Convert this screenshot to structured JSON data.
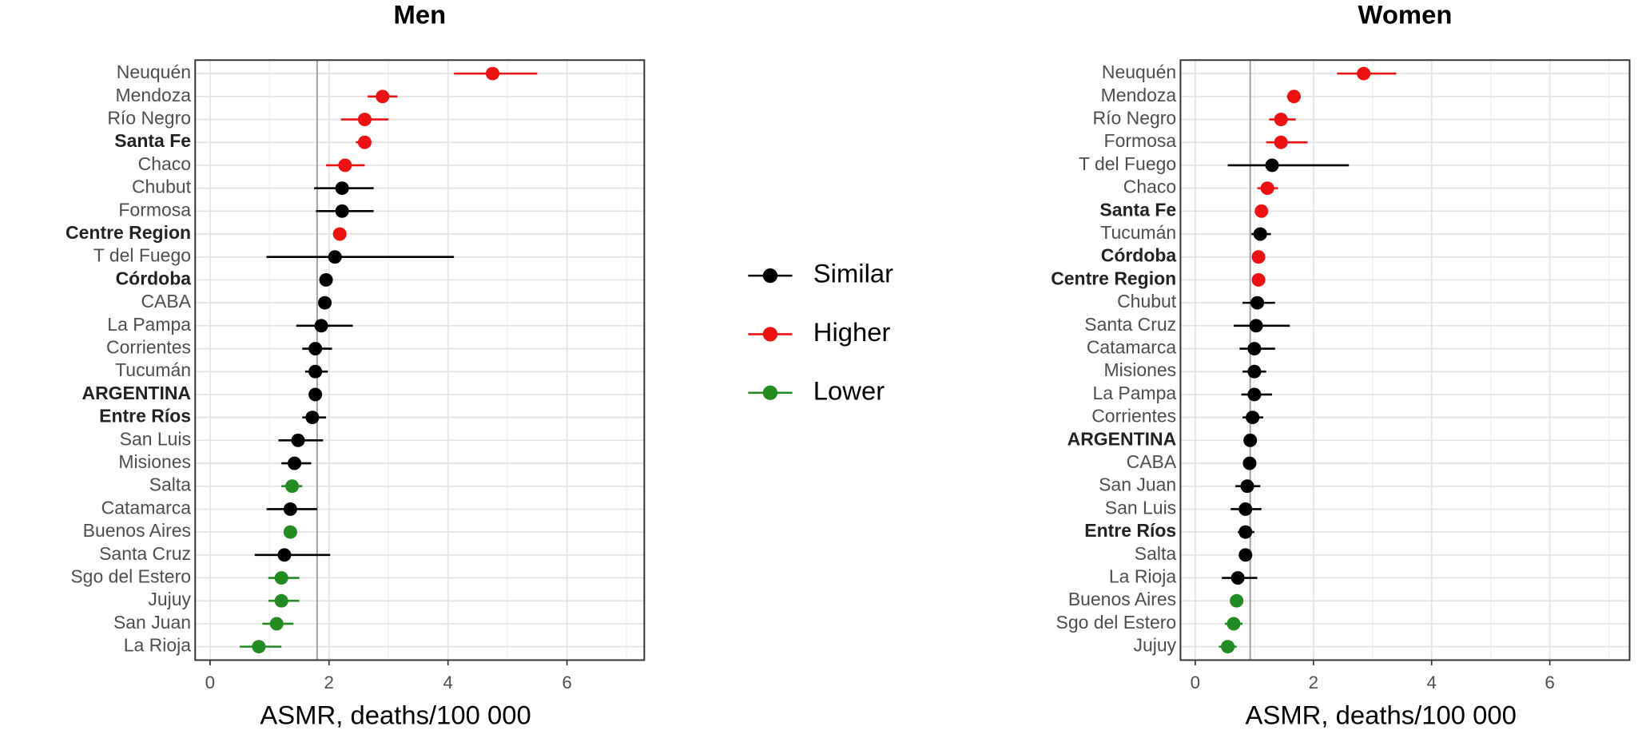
{
  "chart_data": [
    {
      "type": "forest",
      "title": "Men",
      "x_label": "ASMR, deaths/100 000",
      "categories": [
        "Neuquén",
        "Mendoza",
        "Río Negro",
        "Santa Fe",
        "Chaco",
        "Chubut",
        "Formosa",
        "Centre Region",
        "T del Fuego",
        "Córdoba",
        "CABA",
        "La Pampa",
        "Corrientes",
        "Tucumán",
        "ARGENTINA",
        "Entre Ríos",
        "San Luis",
        "Misiones",
        "Salta",
        "Catamarca",
        "Buenos Aires",
        "Santa Cruz",
        "Sgo del Estero",
        "Jujuy",
        "San Juan",
        "La Rioja"
      ],
      "bold_indices": [
        3,
        7,
        9,
        14,
        15
      ],
      "series": [
        {
          "name": "Similar",
          "color": "#000000",
          "values": [
            null,
            null,
            null,
            null,
            null,
            2.22,
            2.22,
            null,
            2.1,
            1.95,
            1.93,
            1.87,
            1.77,
            1.77,
            1.77,
            1.72,
            1.48,
            1.42,
            null,
            1.35,
            null,
            1.25,
            null,
            null,
            null,
            null
          ],
          "ci_low": [
            null,
            null,
            null,
            null,
            null,
            1.75,
            1.78,
            null,
            0.95,
            1.85,
            1.83,
            1.45,
            1.55,
            1.6,
            1.72,
            1.55,
            1.15,
            1.2,
            null,
            0.95,
            null,
            0.75,
            null,
            null,
            null,
            null
          ],
          "ci_high": [
            null,
            null,
            null,
            null,
            null,
            2.75,
            2.75,
            null,
            4.1,
            2.05,
            2.03,
            2.4,
            2.05,
            1.98,
            1.82,
            1.95,
            1.9,
            1.7,
            null,
            1.8,
            null,
            2.02,
            null,
            null,
            null,
            null
          ]
        },
        {
          "name": "Higher",
          "color": "#ee1111",
          "values": [
            4.75,
            2.9,
            2.6,
            2.6,
            2.27,
            null,
            null,
            2.18,
            null,
            null,
            null,
            null,
            null,
            null,
            null,
            null,
            null,
            null,
            null,
            null,
            null,
            null,
            null,
            null,
            null,
            null
          ],
          "ci_low": [
            4.1,
            2.65,
            2.2,
            2.45,
            1.95,
            null,
            null,
            2.1,
            null,
            null,
            null,
            null,
            null,
            null,
            null,
            null,
            null,
            null,
            null,
            null,
            null,
            null,
            null,
            null,
            null,
            null
          ],
          "ci_high": [
            5.5,
            3.15,
            3.0,
            2.7,
            2.6,
            null,
            null,
            2.28,
            null,
            null,
            null,
            null,
            null,
            null,
            null,
            null,
            null,
            null,
            null,
            null,
            null,
            null,
            null,
            null,
            null,
            null
          ]
        },
        {
          "name": "Lower",
          "color": "#228b22",
          "values": [
            null,
            null,
            null,
            null,
            null,
            null,
            null,
            null,
            null,
            null,
            null,
            null,
            null,
            null,
            null,
            null,
            null,
            null,
            1.38,
            null,
            1.35,
            null,
            1.2,
            1.2,
            1.12,
            0.82
          ],
          "ci_low": [
            null,
            null,
            null,
            null,
            null,
            null,
            null,
            null,
            null,
            null,
            null,
            null,
            null,
            null,
            null,
            null,
            null,
            null,
            1.2,
            null,
            1.3,
            null,
            0.98,
            0.98,
            0.88,
            0.5
          ],
          "ci_high": [
            null,
            null,
            null,
            null,
            null,
            null,
            null,
            null,
            null,
            null,
            null,
            null,
            null,
            null,
            null,
            null,
            null,
            null,
            1.55,
            null,
            1.4,
            null,
            1.5,
            1.5,
            1.4,
            1.2
          ]
        }
      ],
      "reference_line": 1.8,
      "xlim": [
        -0.25,
        7.3
      ],
      "xticks": [
        0,
        2,
        4,
        6
      ],
      "minor_xticks": [
        1,
        3,
        5,
        7
      ],
      "grid": true
    },
    {
      "type": "forest",
      "title": "Women",
      "x_label": "ASMR, deaths/100 000",
      "categories": [
        "Neuquén",
        "Mendoza",
        "Río Negro",
        "Formosa",
        "T del Fuego",
        "Chaco",
        "Santa Fe",
        "Tucumán",
        "Córdoba",
        "Centre Region",
        "Chubut",
        "Santa Cruz",
        "Catamarca",
        "Misiones",
        "La Pampa",
        "Corrientes",
        "ARGENTINA",
        "CABA",
        "San Juan",
        "San Luis",
        "Entre Ríos",
        "Salta",
        "La Rioja",
        "Buenos Aires",
        "Sgo del Estero",
        "Jujuy"
      ],
      "bold_indices": [
        6,
        8,
        9,
        16,
        20
      ],
      "series": [
        {
          "name": "Similar",
          "color": "#000000",
          "values": [
            null,
            null,
            null,
            null,
            1.3,
            null,
            null,
            1.1,
            null,
            null,
            1.05,
            1.03,
            1.0,
            1.0,
            1.0,
            0.97,
            0.93,
            0.92,
            0.88,
            0.85,
            0.85,
            0.85,
            0.72,
            null,
            null,
            null
          ],
          "ci_low": [
            null,
            null,
            null,
            null,
            0.55,
            null,
            null,
            0.95,
            null,
            null,
            0.8,
            0.65,
            0.75,
            0.8,
            0.78,
            0.8,
            0.9,
            0.85,
            0.68,
            0.6,
            0.72,
            0.75,
            0.45,
            null,
            null,
            null
          ],
          "ci_high": [
            null,
            null,
            null,
            null,
            2.6,
            null,
            null,
            1.28,
            null,
            null,
            1.35,
            1.6,
            1.35,
            1.2,
            1.3,
            1.15,
            0.96,
            1.0,
            1.1,
            1.12,
            1.0,
            0.95,
            1.05,
            null,
            null,
            null
          ]
        },
        {
          "name": "Higher",
          "color": "#ee1111",
          "values": [
            2.85,
            1.67,
            1.45,
            1.45,
            null,
            1.22,
            1.12,
            null,
            1.07,
            1.07,
            null,
            null,
            null,
            null,
            null,
            null,
            null,
            null,
            null,
            null,
            null,
            null,
            null,
            null,
            null,
            null
          ],
          "ci_low": [
            2.4,
            1.55,
            1.25,
            1.2,
            null,
            1.05,
            1.05,
            null,
            1.0,
            1.03,
            null,
            null,
            null,
            null,
            null,
            null,
            null,
            null,
            null,
            null,
            null,
            null,
            null,
            null,
            null,
            null
          ],
          "ci_high": [
            3.4,
            1.78,
            1.7,
            1.9,
            null,
            1.4,
            1.2,
            null,
            1.15,
            1.12,
            null,
            null,
            null,
            null,
            null,
            null,
            null,
            null,
            null,
            null,
            null,
            null,
            null,
            null,
            null,
            null
          ]
        },
        {
          "name": "Lower",
          "color": "#228b22",
          "values": [
            null,
            null,
            null,
            null,
            null,
            null,
            null,
            null,
            null,
            null,
            null,
            null,
            null,
            null,
            null,
            null,
            null,
            null,
            null,
            null,
            null,
            null,
            null,
            0.7,
            0.65,
            0.55
          ],
          "ci_low": [
            null,
            null,
            null,
            null,
            null,
            null,
            null,
            null,
            null,
            null,
            null,
            null,
            null,
            null,
            null,
            null,
            null,
            null,
            null,
            null,
            null,
            null,
            null,
            0.65,
            0.5,
            0.4
          ],
          "ci_high": [
            null,
            null,
            null,
            null,
            null,
            null,
            null,
            null,
            null,
            null,
            null,
            null,
            null,
            null,
            null,
            null,
            null,
            null,
            null,
            null,
            null,
            null,
            null,
            0.75,
            0.8,
            0.7
          ]
        }
      ],
      "reference_line": 0.93,
      "xlim": [
        -0.25,
        7.35
      ],
      "xticks": [
        0,
        2,
        4,
        6
      ],
      "minor_xticks": [
        1,
        3,
        5,
        7
      ],
      "grid": true
    }
  ]
}
